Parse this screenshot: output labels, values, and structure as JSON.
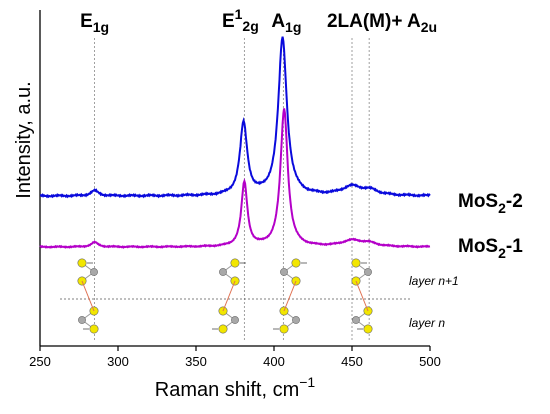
{
  "chart_data": {
    "type": "line",
    "xlabel": "Raman shift, cm",
    "xlabel_sup": "−1",
    "ylabel": "Intensity, a.u.",
    "xlim": [
      250,
      500
    ],
    "x_ticks": [
      "250",
      "300",
      "350",
      "400",
      "450",
      "500"
    ],
    "y_ticks": [],
    "grid": false,
    "peak_markers": [
      {
        "x": 285,
        "label": "E",
        "sub": "1g",
        "sup": ""
      },
      {
        "x": 381,
        "label": "E",
        "sub": "2g",
        "sup": "1"
      },
      {
        "x": 406,
        "label": "A",
        "sub": "1g",
        "sup": ""
      },
      {
        "x": 450,
        "label": "2LA(M)+ A",
        "sub": "2u",
        "sup": ""
      },
      {
        "x": 461,
        "label": "",
        "sub": "",
        "sup": ""
      }
    ],
    "series": [
      {
        "name": "MoS2-2",
        "name_main": "MoS",
        "name_sub": "2",
        "name_tail": "-2",
        "color": "#0a0adc",
        "baseline_intensity": 0.0,
        "peaks": [
          {
            "x": 285,
            "height": 0.035,
            "width": 3
          },
          {
            "x": 380.5,
            "height": 0.48,
            "width": 2.8
          },
          {
            "x": 405.5,
            "height": 1.05,
            "width": 3.3
          },
          {
            "x": 450,
            "height": 0.06,
            "width": 8
          },
          {
            "x": 462,
            "height": 0.03,
            "width": 6
          }
        ]
      },
      {
        "name": "MoS2-1",
        "name_main": "MoS",
        "name_sub": "2",
        "name_tail": "-1",
        "color": "#b400c8",
        "baseline_intensity": 0.0,
        "peaks": [
          {
            "x": 285,
            "height": 0.045,
            "width": 2.8
          },
          {
            "x": 381,
            "height": 0.63,
            "width": 2.3
          },
          {
            "x": 406.5,
            "height": 1.35,
            "width": 2.8
          },
          {
            "x": 450,
            "height": 0.06,
            "width": 8
          },
          {
            "x": 461,
            "height": 0.03,
            "width": 6
          }
        ]
      }
    ],
    "layers": [
      "layer n+1",
      "layer n"
    ],
    "atom_colors": {
      "sulfur": "#f2e600",
      "molybdenum": "#a8a8a8",
      "bond": "#e07050"
    }
  }
}
